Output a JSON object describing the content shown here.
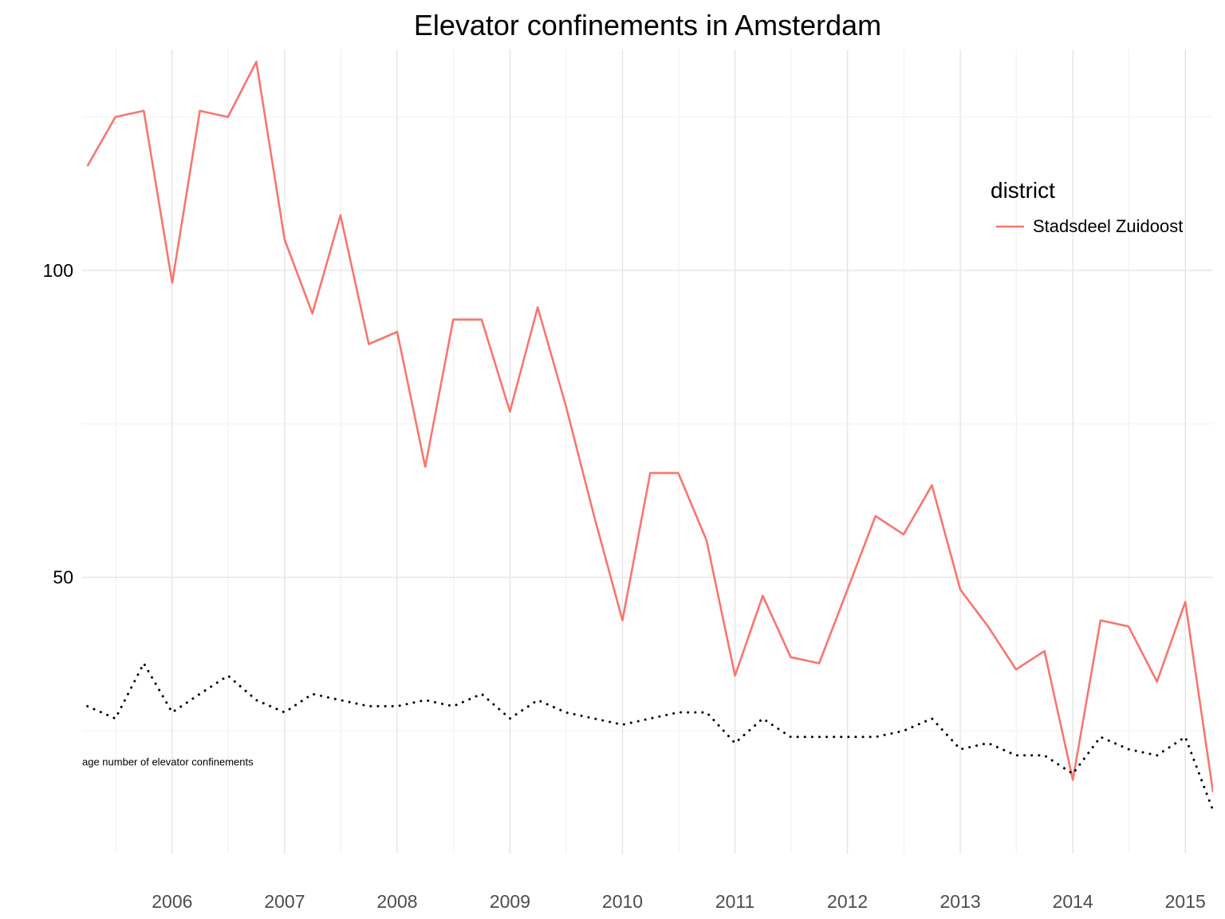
{
  "chart_data": {
    "type": "line",
    "title": "Elevator confinements in Amsterdam",
    "xlabel": "",
    "ylabel": "",
    "x_axis": {
      "type": "date",
      "range": [
        "2005-03-15",
        "2015-04-01"
      ],
      "ticks": [
        "2006",
        "2007",
        "2008",
        "2009",
        "2010",
        "2011",
        "2012",
        "2013",
        "2014",
        "2015"
      ]
    },
    "y_axis": {
      "range": [
        5,
        136
      ],
      "ticks": [
        50,
        100
      ]
    },
    "grid": true,
    "legend": {
      "title": "district",
      "placement": "right",
      "entries": [
        {
          "label": "Stadsdeel Zuidoost",
          "color": "#f8766d"
        }
      ]
    },
    "annotation": {
      "text": "age number of elevator confinements",
      "x": "2005-03-15",
      "y": 20
    },
    "x": [
      "2005-04-01",
      "2005-07-01",
      "2005-10-01",
      "2006-01-01",
      "2006-04-01",
      "2006-07-01",
      "2006-10-01",
      "2007-01-01",
      "2007-04-01",
      "2007-07-01",
      "2007-10-01",
      "2008-01-01",
      "2008-04-01",
      "2008-07-01",
      "2008-10-01",
      "2009-01-01",
      "2009-04-01",
      "2009-07-01",
      "2009-10-01",
      "2010-01-01",
      "2010-04-01",
      "2010-07-01",
      "2010-10-01",
      "2011-01-01",
      "2011-04-01",
      "2011-07-01",
      "2011-10-01",
      "2012-01-01",
      "2012-04-01",
      "2012-07-01",
      "2012-10-01",
      "2013-01-01",
      "2013-04-01",
      "2013-07-01",
      "2013-10-01",
      "2014-01-01",
      "2014-04-01",
      "2014-07-01",
      "2014-10-01",
      "2015-01-01",
      "2015-04-01"
    ],
    "series": [
      {
        "name": "Stadsdeel Zuidoost",
        "color": "#f8766d",
        "line_style": "solid",
        "values": [
          117,
          125,
          126,
          98,
          126,
          125,
          134,
          105,
          93,
          109,
          88,
          90,
          68,
          92,
          92,
          77,
          94,
          78,
          60,
          43,
          67,
          67,
          56,
          34,
          47,
          37,
          36,
          48,
          60,
          57,
          65,
          48,
          42,
          35,
          38,
          17,
          43,
          42,
          33,
          46,
          15
        ]
      },
      {
        "color": "#000000",
        "line_style": "dotted",
        "values": [
          29,
          27,
          36,
          28,
          31,
          34,
          30,
          28,
          31,
          30,
          29,
          29,
          30,
          29,
          31,
          27,
          30,
          28,
          27,
          26,
          27,
          28,
          28,
          23,
          27,
          24,
          24,
          24,
          24,
          25,
          27,
          22,
          23,
          21,
          21,
          18,
          24,
          22,
          21,
          24,
          12
        ]
      }
    ]
  }
}
